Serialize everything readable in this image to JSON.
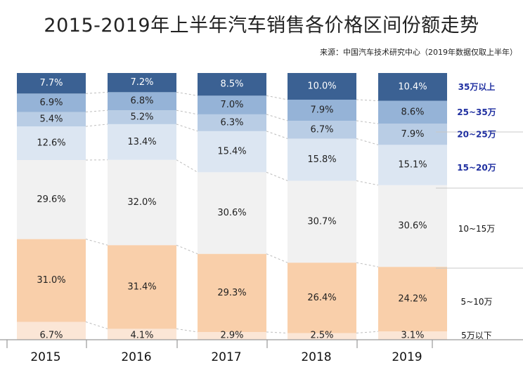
{
  "title": "2015-2019年上半年汽车销售各价格区间份额走势",
  "source": "来源：中国汽车技术研究中心（2019年数据仅取上半年）",
  "chart_data": {
    "type": "bar",
    "stacked": true,
    "ylim": [
      0,
      100
    ],
    "grid": false,
    "legend_placement": "right",
    "categories": [
      "2015",
      "2016",
      "2017",
      "2018",
      "2019"
    ],
    "series": [
      {
        "name": "5万以下",
        "values": [
          6.7,
          4.1,
          2.9,
          2.5,
          3.1
        ],
        "labels": [
          "6.7%",
          "4.1%",
          "2.9%",
          "2.5%",
          "3.1%"
        ],
        "color": "#fbe6d6",
        "label_color": "#222222",
        "legend_color": "#111111",
        "legend_bold": false
      },
      {
        "name": "5~10万",
        "values": [
          31.0,
          31.4,
          29.3,
          26.4,
          24.2
        ],
        "labels": [
          "31.0%",
          "31.4%",
          "29.3%",
          "26.4%",
          "24.2%"
        ],
        "color": "#f9cfaa",
        "label_color": "#222222",
        "legend_color": "#111111",
        "legend_bold": false
      },
      {
        "name": "10~15万",
        "values": [
          29.6,
          32.0,
          30.6,
          30.7,
          30.6
        ],
        "labels": [
          "29.6%",
          "32.0%",
          "30.6%",
          "30.7%",
          "30.6%"
        ],
        "color": "#f1f1f1",
        "label_color": "#222222",
        "legend_color": "#111111",
        "legend_bold": false
      },
      {
        "name": "15~20万",
        "values": [
          12.6,
          13.4,
          15.4,
          15.8,
          15.1
        ],
        "labels": [
          "12.6%",
          "13.4%",
          "15.4%",
          "15.8%",
          "15.1%"
        ],
        "color": "#dce6f2",
        "label_color": "#222222",
        "legend_color": "#1f2fa0",
        "legend_bold": true
      },
      {
        "name": "20~25万",
        "values": [
          5.4,
          5.2,
          6.3,
          6.7,
          7.9
        ],
        "labels": [
          "5.4%",
          "5.2%",
          "6.3%",
          "6.7%",
          "7.9%"
        ],
        "color": "#b9cde5",
        "label_color": "#222222",
        "legend_color": "#1f2fa0",
        "legend_bold": true
      },
      {
        "name": "25~35万",
        "values": [
          6.9,
          6.8,
          7.0,
          7.9,
          8.6
        ],
        "labels": [
          "6.9%",
          "6.8%",
          "7.0%",
          "7.9%",
          "8.6%"
        ],
        "color": "#95b3d7",
        "label_color": "#222222",
        "legend_color": "#1f2fa0",
        "legend_bold": true
      },
      {
        "name": "35万以上",
        "values": [
          7.7,
          7.2,
          8.5,
          10.0,
          10.4
        ],
        "labels": [
          "7.7%",
          "7.2%",
          "8.5%",
          "10.0%",
          "10.4%"
        ],
        "color": "#3b6193",
        "label_color": "#ffffff",
        "legend_color": "#1f2fa0",
        "legend_bold": true
      }
    ]
  }
}
